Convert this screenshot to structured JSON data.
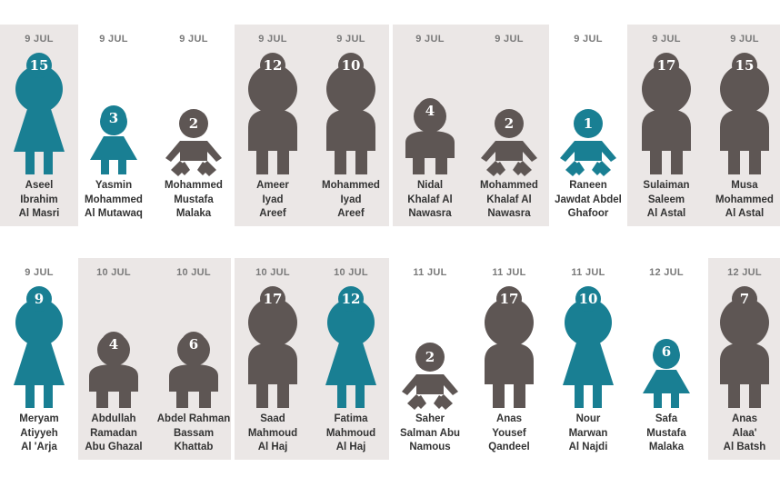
{
  "colors": {
    "male": "#5e5654",
    "female": "#197f93",
    "panel": "#ebe7e6"
  },
  "rows": [
    [
      {
        "date": "9 JUL",
        "age": "15",
        "kind": "female-adult",
        "name": [
          "Aseel",
          "Ibrahim",
          "Al Masri"
        ],
        "icon": "woman-icon"
      },
      {
        "date": "9 JUL",
        "age": "3",
        "kind": "female-child",
        "name": [
          "Yasmin",
          "Mohammed",
          "Al Mutawaq"
        ],
        "icon": "girl-icon"
      },
      {
        "date": "9 JUL",
        "age": "2",
        "kind": "baby-male",
        "name": [
          "Mohammed",
          "Mustafa",
          "Malaka"
        ],
        "icon": "baby-icon"
      },
      {
        "date": "9 JUL",
        "age": "12",
        "kind": "male-adult",
        "name": [
          "Ameer",
          "Iyad",
          "Areef"
        ],
        "icon": "man-icon"
      },
      {
        "date": "9 JUL",
        "age": "10",
        "kind": "male-adult",
        "name": [
          "Mohammed",
          "Iyad",
          "Areef"
        ],
        "icon": "man-icon"
      },
      {
        "date": "9 JUL",
        "age": "4",
        "kind": "male-child",
        "name": [
          "Nidal",
          "Khalaf Al",
          "Nawasra"
        ],
        "icon": "boy-icon"
      },
      {
        "date": "9 JUL",
        "age": "2",
        "kind": "baby-male",
        "name": [
          "Mohammed",
          "Khalaf Al",
          "Nawasra"
        ],
        "icon": "baby-icon"
      },
      {
        "date": "9 JUL",
        "age": "1",
        "kind": "baby-female",
        "name": [
          "Raneen",
          "Jawdat Abdel",
          "Ghafoor"
        ],
        "icon": "baby-icon"
      },
      {
        "date": "9 JUL",
        "age": "17",
        "kind": "male-adult",
        "name": [
          "Sulaiman",
          "Saleem",
          "Al Astal"
        ],
        "icon": "man-icon"
      },
      {
        "date": "9 JUL",
        "age": "15",
        "kind": "male-adult",
        "name": [
          "Musa",
          "Mohammed",
          "Al Astal"
        ],
        "icon": "man-icon"
      }
    ],
    [
      {
        "date": "9 JUL",
        "age": "9",
        "kind": "female-adult",
        "name": [
          "Meryam",
          "Atiyyeh",
          "Al 'Arja"
        ],
        "icon": "woman-icon"
      },
      {
        "date": "10 JUL",
        "age": "4",
        "kind": "male-child",
        "name": [
          "Abdullah",
          "Ramadan",
          "Abu Ghazal"
        ],
        "icon": "boy-icon"
      },
      {
        "date": "10 JUL",
        "age": "6",
        "kind": "male-child",
        "name": [
          "Abdel Rahman",
          "Bassam",
          "Khattab"
        ],
        "icon": "boy-icon"
      },
      {
        "date": "10 JUL",
        "age": "17",
        "kind": "male-adult",
        "name": [
          "Saad",
          "Mahmoud",
          "Al Haj"
        ],
        "icon": "man-icon"
      },
      {
        "date": "10 JUL",
        "age": "12",
        "kind": "female-adult",
        "name": [
          "Fatima",
          "Mahmoud",
          "Al Haj"
        ],
        "icon": "woman-icon"
      },
      {
        "date": "11 JUL",
        "age": "2",
        "kind": "baby-male",
        "name": [
          "Saher",
          "Salman Abu",
          "Namous"
        ],
        "icon": "baby-icon"
      },
      {
        "date": "11 JUL",
        "age": "17",
        "kind": "male-adult",
        "name": [
          "Anas",
          "Yousef",
          "Qandeel"
        ],
        "icon": "man-icon"
      },
      {
        "date": "11 JUL",
        "age": "10",
        "kind": "female-adult",
        "name": [
          "Nour",
          "Marwan",
          "Al Najdi"
        ],
        "icon": "woman-icon"
      },
      {
        "date": "12 JUL",
        "age": "6",
        "kind": "female-child",
        "name": [
          "Safa",
          "Mustafa",
          "Malaka"
        ],
        "icon": "girl-icon"
      },
      {
        "date": "12 JUL",
        "age": "7",
        "kind": "male-adult",
        "name": [
          "Anas",
          "Alaa'",
          "Al Batsh"
        ],
        "icon": "man-icon"
      }
    ]
  ]
}
